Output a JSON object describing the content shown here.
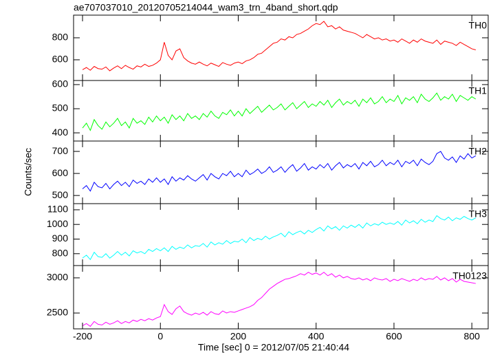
{
  "chart_data": {
    "type": "line",
    "title": "ae707037010_20120705214044_wam3_trn_4band_short.qdp",
    "xlabel": "Time [sec] 0 = 2012/07/05 21:40:44",
    "ylabel": "Counts/sec",
    "xlim": [
      -223,
      842
    ],
    "xticks": [
      -200,
      0,
      200,
      400,
      600,
      800
    ],
    "x": [
      -200,
      -190,
      -180,
      -170,
      -160,
      -150,
      -140,
      -130,
      -120,
      -110,
      -100,
      -90,
      -80,
      -70,
      -60,
      -50,
      -40,
      -30,
      -20,
      -10,
      0,
      10,
      20,
      30,
      40,
      50,
      60,
      70,
      80,
      90,
      100,
      110,
      120,
      130,
      140,
      150,
      160,
      170,
      180,
      190,
      200,
      210,
      220,
      230,
      240,
      250,
      260,
      270,
      280,
      290,
      300,
      310,
      320,
      330,
      340,
      350,
      360,
      370,
      380,
      390,
      400,
      410,
      420,
      430,
      440,
      450,
      460,
      470,
      480,
      490,
      500,
      510,
      520,
      530,
      540,
      550,
      560,
      570,
      580,
      590,
      600,
      610,
      620,
      630,
      640,
      650,
      660,
      670,
      680,
      690,
      700,
      710,
      720,
      730,
      740,
      750,
      760,
      770,
      780,
      790,
      800,
      810
    ],
    "panels": [
      {
        "name": "TH0",
        "color": "#ff0000",
        "ylim": [
          412,
          1006
        ],
        "yticks": [
          600,
          800
        ],
        "values": [
          510,
          530,
          505,
          540,
          520,
          515,
          535,
          500,
          525,
          545,
          520,
          550,
          530,
          515,
          545,
          535,
          560,
          540,
          550,
          570,
          600,
          760,
          640,
          600,
          680,
          700,
          620,
          590,
          570,
          560,
          580,
          560,
          545,
          570,
          555,
          540,
          575,
          560,
          550,
          570,
          580,
          565,
          590,
          600,
          620,
          650,
          660,
          690,
          720,
          750,
          760,
          790,
          780,
          810,
          800,
          830,
          840,
          860,
          880,
          910,
          930,
          920,
          950,
          900,
          910,
          880,
          900,
          870,
          860,
          850,
          840,
          820,
          800,
          830,
          810,
          790,
          800,
          780,
          790,
          770,
          780,
          760,
          790,
          770,
          750,
          780,
          760,
          790,
          770,
          760,
          750,
          780,
          740,
          770,
          760,
          750,
          730,
          760,
          740,
          720,
          700,
          690
        ]
      },
      {
        "name": "TH1",
        "color": "#00ff00",
        "ylim": [
          366,
          617
        ],
        "yticks": [
          400,
          500,
          600
        ],
        "values": [
          420,
          440,
          410,
          455,
          430,
          415,
          445,
          425,
          440,
          460,
          430,
          445,
          420,
          460,
          440,
          450,
          435,
          465,
          445,
          470,
          450,
          465,
          440,
          475,
          455,
          470,
          450,
          480,
          460,
          470,
          455,
          480,
          465,
          490,
          470,
          460,
          485,
          475,
          495,
          470,
          490,
          470,
          500,
          480,
          495,
          510,
          485,
          500,
          515,
          495,
          505,
          520,
          495,
          510,
          525,
          500,
          515,
          530,
          505,
          520,
          510,
          530,
          515,
          535,
          505,
          525,
          540,
          515,
          530,
          520,
          535,
          510,
          540,
          525,
          545,
          520,
          530,
          550,
          525,
          540,
          530,
          555,
          520,
          545,
          535,
          550,
          525,
          560,
          540,
          530,
          545,
          565,
          535,
          550,
          540,
          560,
          530,
          555,
          545,
          535,
          550,
          540
        ]
      },
      {
        "name": "TH2",
        "color": "#0000ff",
        "ylim": [
          463,
          747
        ],
        "yticks": [
          500,
          600,
          700
        ],
        "values": [
          530,
          545,
          520,
          560,
          540,
          535,
          555,
          530,
          550,
          565,
          545,
          560,
          540,
          570,
          555,
          565,
          550,
          575,
          560,
          580,
          560,
          575,
          550,
          585,
          565,
          580,
          570,
          590,
          575,
          565,
          580,
          595,
          570,
          600,
          585,
          575,
          600,
          590,
          610,
          585,
          600,
          585,
          615,
          595,
          605,
          620,
          600,
          610,
          630,
          605,
          615,
          630,
          605,
          625,
          640,
          610,
          625,
          645,
          615,
          630,
          620,
          640,
          625,
          645,
          615,
          635,
          650,
          625,
          640,
          630,
          645,
          620,
          650,
          635,
          655,
          630,
          640,
          660,
          635,
          650,
          640,
          660,
          630,
          655,
          645,
          660,
          635,
          665,
          650,
          640,
          655,
          690,
          700,
          670,
          660,
          675,
          650,
          680,
          665,
          690,
          670,
          680
        ]
      },
      {
        "name": "TH3",
        "color": "#00ffff",
        "ylim": [
          719,
          1142
        ],
        "yticks": [
          800,
          900,
          1000,
          1100
        ],
        "values": [
          770,
          790,
          760,
          810,
          780,
          775,
          800,
          770,
          790,
          815,
          790,
          810,
          785,
          820,
          805,
          815,
          800,
          830,
          815,
          835,
          820,
          840,
          815,
          850,
          830,
          845,
          835,
          860,
          840,
          855,
          850,
          870,
          845,
          880,
          860,
          875,
          865,
          890,
          870,
          885,
          880,
          900,
          875,
          910,
          890,
          905,
          895,
          920,
          900,
          915,
          925,
          940,
          915,
          950,
          930,
          945,
          955,
          935,
          960,
          945,
          965,
          980,
          955,
          990,
          970,
          985,
          960,
          990,
          975,
          995,
          980,
          1000,
          975,
          1010,
          990,
          1005,
          995,
          1015,
          1000,
          1010,
          1000,
          1020,
          995,
          1030,
          1010,
          1025,
          1005,
          1035,
          1015,
          1030,
          1020,
          1060,
          1040,
          1030,
          1050,
          1025,
          1045,
          1035,
          1055,
          1040,
          1030,
          1045
        ]
      },
      {
        "name": "TH0123",
        "color": "#ff00ff",
        "ylim": [
          2275,
          3175
        ],
        "yticks": [
          2500,
          3000
        ],
        "values": [
          2320,
          2350,
          2310,
          2380,
          2340,
          2330,
          2370,
          2340,
          2360,
          2390,
          2350,
          2380,
          2360,
          2400,
          2380,
          2410,
          2390,
          2420,
          2400,
          2430,
          2450,
          2620,
          2520,
          2480,
          2560,
          2600,
          2520,
          2490,
          2470,
          2500,
          2480,
          2510,
          2470,
          2520,
          2490,
          2480,
          2530,
          2500,
          2520,
          2510,
          2530,
          2550,
          2570,
          2590,
          2620,
          2680,
          2720,
          2780,
          2840,
          2880,
          2920,
          2950,
          2980,
          2990,
          3010,
          3030,
          3060,
          3040,
          3080,
          3050,
          3070,
          3040,
          3080,
          3030,
          3060,
          3010,
          3040,
          3000,
          3020,
          2990,
          2980,
          3000,
          2970,
          2990,
          2960,
          3000,
          2980,
          2970,
          2990,
          2950,
          2980,
          2960,
          2990,
          2970,
          2950,
          2980,
          2960,
          3000,
          2970,
          2990,
          2980,
          3020,
          2970,
          3000,
          2960,
          2990,
          2940,
          2980,
          2950,
          2940,
          2930,
          2920
        ]
      }
    ]
  }
}
